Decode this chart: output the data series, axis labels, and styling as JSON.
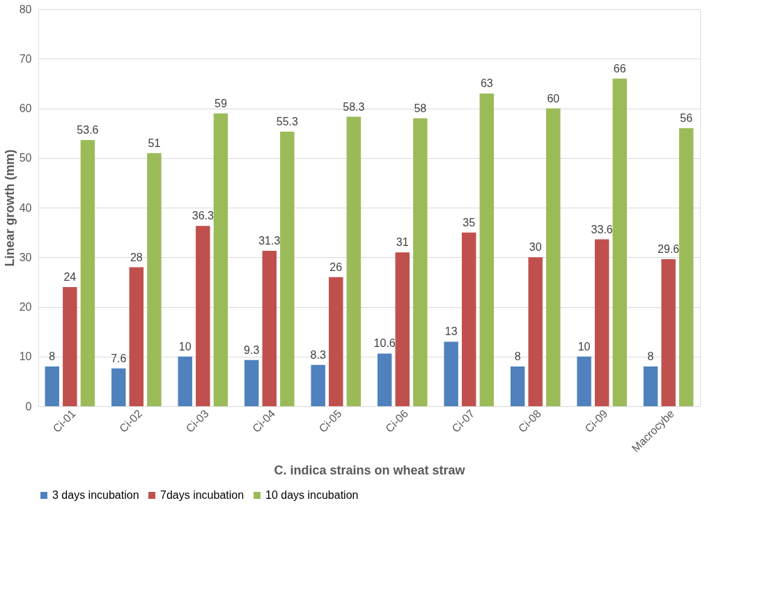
{
  "chart_data": {
    "type": "bar",
    "xlabel": "C. indica strains on wheat straw",
    "ylabel": "Linear growth (mm)",
    "categories": [
      "Ci-01",
      "Ci-02",
      "Ci-03",
      "Ci-04",
      "Ci-05",
      "Ci-06",
      "Ci-07",
      "Ci-08",
      "Ci-09",
      "Macrocybe"
    ],
    "series": [
      {
        "name": "3 days incubation",
        "color": "#4f81bd",
        "values": [
          8,
          7.6,
          10,
          9.3,
          8.3,
          10.6,
          13,
          8,
          10,
          8
        ]
      },
      {
        "name": "7days incubation",
        "color": "#c0504d",
        "values": [
          24,
          28,
          36.3,
          31.3,
          26,
          31,
          35,
          30,
          33.6,
          29.6
        ]
      },
      {
        "name": "10 days incubation",
        "color": "#9bbb59",
        "values": [
          53.6,
          51,
          59,
          55.3,
          58.3,
          58,
          63,
          60,
          66,
          56
        ]
      }
    ],
    "ylim": [
      0,
      80
    ],
    "yticks": [
      0,
      10,
      20,
      30,
      40,
      50,
      60,
      70,
      80
    ],
    "grid": "y",
    "legend": "bottom",
    "data_labels": true
  }
}
